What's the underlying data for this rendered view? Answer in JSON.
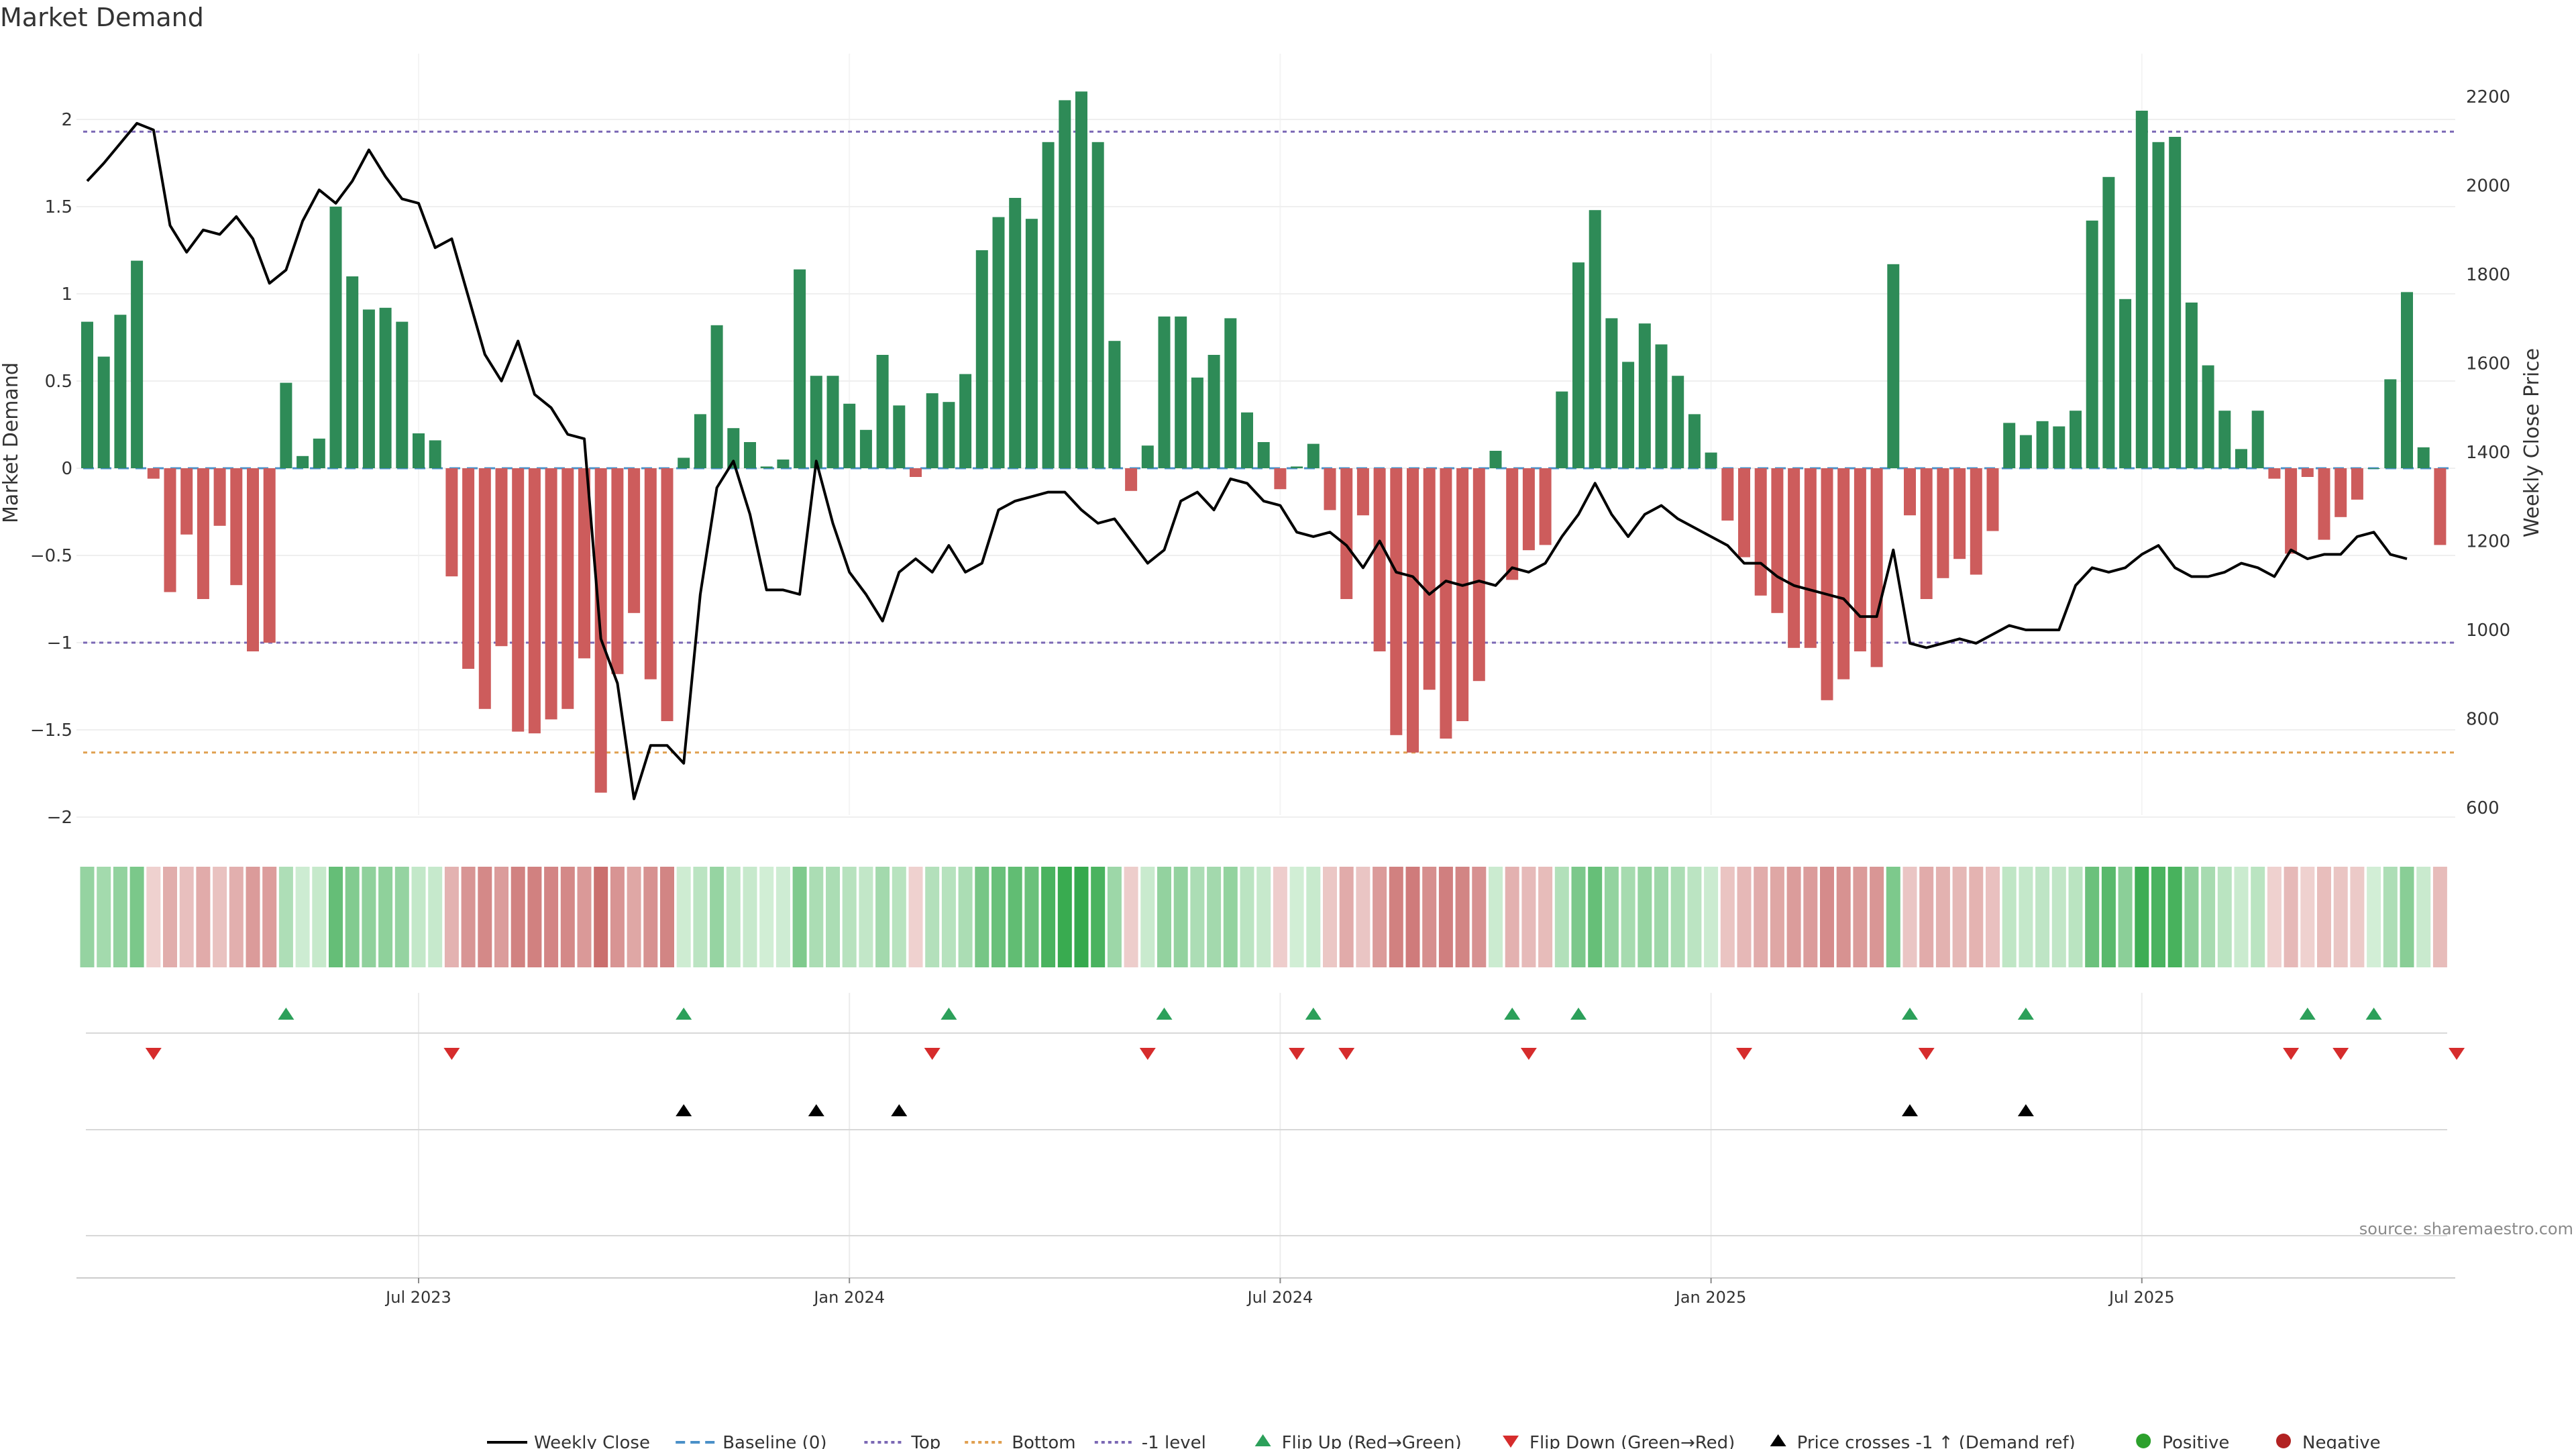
{
  "chart_data": {
    "type": "bar+line",
    "title": "Market Demand",
    "ylabel_left": "Market Demand",
    "ylabel_right": "Weekly Close Price",
    "ylim_left": [
      -2.2,
      2.4
    ],
    "ylim_right": [
      570,
      2250
    ],
    "yticks_left": [
      "2",
      "1.5",
      "1",
      "0.5",
      "0",
      "−0.5",
      "−1",
      "−1.5",
      "−2"
    ],
    "yticks_right": [
      "2200",
      "2000",
      "1800",
      "1600",
      "1400",
      "1200",
      "1000",
      "800",
      "600"
    ],
    "x_ticks": [
      "Jul 2023",
      "Jan 2024",
      "Jul 2024",
      "Jan 2025",
      "Jul 2025"
    ],
    "x_tick_index": [
      20,
      46,
      72,
      98,
      124
    ],
    "reference_lines": [
      {
        "name": "Top",
        "value": 1.93,
        "color": "#7b68b5"
      },
      {
        "name": "-1 level",
        "value": -1.0,
        "color": "#7b68b5"
      },
      {
        "name": "Bottom",
        "value": -1.63,
        "color": "#e0a050"
      },
      {
        "name": "Baseline (0)",
        "value": 0,
        "color": "#4a90c8"
      }
    ],
    "demand": [
      0.84,
      0.64,
      0.88,
      1.19,
      -0.06,
      -0.71,
      -0.38,
      -0.75,
      -0.33,
      -0.67,
      -1.05,
      -1.0,
      0.49,
      0.07,
      0.17,
      1.5,
      1.1,
      0.91,
      0.92,
      0.84,
      0.2,
      0.16,
      -0.62,
      -1.15,
      -1.38,
      -1.02,
      -1.51,
      -1.52,
      -1.44,
      -1.38,
      -1.09,
      -1.86,
      -1.18,
      -0.83,
      -1.21,
      -1.45,
      0.06,
      0.31,
      0.82,
      0.23,
      0.15,
      0.01,
      0.05,
      1.14,
      0.53,
      0.53,
      0.37,
      0.22,
      0.65,
      0.36,
      -0.05,
      0.43,
      0.38,
      0.54,
      1.25,
      1.44,
      1.55,
      1.43,
      1.87,
      2.11,
      2.16,
      1.87,
      0.73,
      -0.13,
      0.13,
      0.87,
      0.87,
      0.52,
      0.65,
      0.86,
      0.32,
      0.15,
      -0.12,
      0.01,
      0.14,
      -0.24,
      -0.75,
      -0.27,
      -1.05,
      -1.53,
      -1.63,
      -1.27,
      -1.55,
      -1.45,
      -1.22,
      0.1,
      -0.64,
      -0.47,
      -0.44,
      0.44,
      1.18,
      1.48,
      0.86,
      0.61,
      0.83,
      0.71,
      0.53,
      0.31,
      0.09,
      -0.3,
      -0.51,
      -0.73,
      -0.83,
      -1.03,
      -1.03,
      -1.33,
      -1.21,
      -1.05,
      -1.14,
      1.17,
      -0.27,
      -0.75,
      -0.63,
      -0.52,
      -0.61,
      -0.36,
      0.26,
      0.19,
      0.27,
      0.24,
      0.33,
      1.42,
      1.67,
      0.97,
      2.05,
      1.87,
      1.9,
      0.95,
      0.59,
      0.33,
      0.11,
      0.33,
      -0.06,
      -0.49,
      -0.05,
      -0.41,
      -0.28,
      -0.18,
      0.0,
      0.51,
      1.01,
      0.12,
      -0.44
    ],
    "price": [
      2010,
      2050,
      2095,
      2140,
      2125,
      1910,
      1850,
      1900,
      1890,
      1930,
      1880,
      1780,
      1810,
      1920,
      1990,
      1960,
      2010,
      2080,
      2020,
      1970,
      1960,
      1860,
      1880,
      1750,
      1620,
      1560,
      1650,
      1530,
      1500,
      1440,
      1430,
      980,
      880,
      620,
      740,
      740,
      700,
      1080,
      1320,
      1380,
      1260,
      1090,
      1090,
      1080,
      1380,
      1240,
      1130,
      1080,
      1020,
      1130,
      1160,
      1130,
      1190,
      1130,
      1150,
      1270,
      1290,
      1300,
      1310,
      1310,
      1270,
      1240,
      1250,
      1200,
      1150,
      1180,
      1290,
      1310,
      1270,
      1340,
      1330,
      1290,
      1280,
      1220,
      1210,
      1220,
      1190,
      1140,
      1200,
      1130,
      1120,
      1080,
      1110,
      1100,
      1110,
      1100,
      1140,
      1130,
      1150,
      1210,
      1260,
      1330,
      1260,
      1210,
      1260,
      1280,
      1250,
      1230,
      1210,
      1190,
      1150,
      1150,
      1120,
      1100,
      1090,
      1080,
      1070,
      1030,
      1030,
      1180,
      970,
      960,
      970,
      980,
      970,
      990,
      1010,
      1000,
      1000,
      1000,
      1100,
      1140,
      1130,
      1140,
      1170,
      1190,
      1140,
      1120,
      1120,
      1130,
      1150,
      1140,
      1120,
      1180,
      1160,
      1170,
      1170,
      1210,
      1220,
      1170,
      1160
    ],
    "flip_up_index": [
      12,
      36,
      52,
      65,
      74,
      86,
      90,
      110,
      117,
      134,
      138
    ],
    "flip_down_index": [
      4,
      22,
      51,
      64,
      73,
      76,
      87,
      100,
      111,
      133,
      136,
      143
    ],
    "price_cross_index": [
      36,
      44,
      49,
      110,
      117
    ],
    "legend": [
      {
        "label": "Weekly Close",
        "kind": "line-solid",
        "color": "#000000"
      },
      {
        "label": "Baseline (0)",
        "kind": "line-dash",
        "color": "#4a90c8"
      },
      {
        "label": "Top",
        "kind": "line-dot",
        "color": "#7b68b5"
      },
      {
        "label": "Bottom",
        "kind": "line-dot",
        "color": "#e0a050"
      },
      {
        "label": "-1 level",
        "kind": "line-dot",
        "color": "#7b68b5"
      },
      {
        "label": "Flip Up (Red→Green)",
        "kind": "tri-up",
        "color": "#2ca05a"
      },
      {
        "label": "Flip Down (Green→Red)",
        "kind": "tri-down",
        "color": "#d62c2c"
      },
      {
        "label": "Price crosses -1 ↑ (Demand ref)",
        "kind": "tri-up",
        "color": "#000000"
      },
      {
        "label": "Positive",
        "kind": "dot",
        "color": "#2ca02c"
      },
      {
        "label": "Negative",
        "kind": "dot",
        "color": "#b22222"
      }
    ],
    "colors": {
      "positive_bar": "#2e8b57",
      "negative_bar": "#cd5c5c",
      "price_line": "#000000"
    }
  },
  "source": "source: sharemaestro.com"
}
